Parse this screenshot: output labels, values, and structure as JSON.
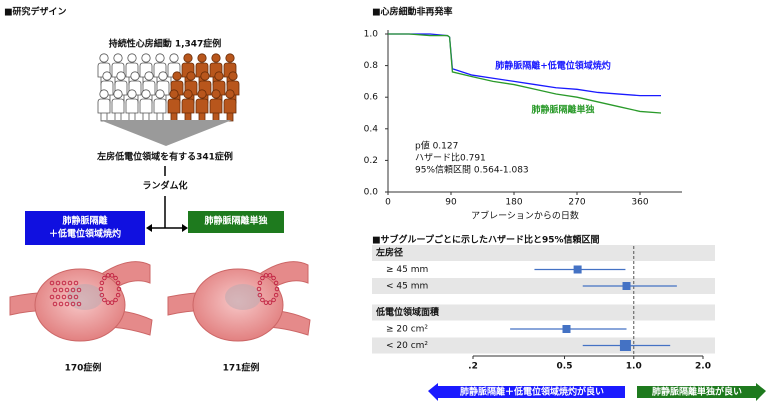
{
  "design": {
    "title": "■研究デザイン",
    "population": "持続性心房細動 1,347症例",
    "subset": "左房低電位領域を有する341症例",
    "randomization": "ランダム化",
    "arms": [
      {
        "label_lines": [
          "肺静脈隔離",
          "＋低電位領域焼灼"
        ],
        "color": "#1010e0",
        "count": "170症例"
      },
      {
        "label_lines": [
          "肺静脈隔離単独"
        ],
        "color": "#1e7a1e",
        "count": "171症例"
      }
    ]
  },
  "chart_data": [
    {
      "type": "line",
      "title": "■心房細動非再発率",
      "x_label": "アブレーションからの日数",
      "x": [
        0,
        30,
        60,
        85,
        88,
        92,
        120,
        150,
        180,
        210,
        240,
        270,
        300,
        330,
        360,
        390
      ],
      "series": [
        {
          "name": "肺静脈隔離+低電位領域焼灼",
          "color": "#1a1aff",
          "values": [
            1.0,
            1.0,
            1.0,
            0.99,
            0.98,
            0.78,
            0.74,
            0.72,
            0.7,
            0.68,
            0.66,
            0.65,
            0.63,
            0.62,
            0.61,
            0.61
          ]
        },
        {
          "name": "肺静脈隔離単独",
          "color": "#2a9a2a",
          "values": [
            1.0,
            1.0,
            0.99,
            0.99,
            0.98,
            0.76,
            0.73,
            0.7,
            0.68,
            0.65,
            0.62,
            0.6,
            0.57,
            0.54,
            0.51,
            0.5
          ]
        }
      ],
      "xlim": [
        0,
        420
      ],
      "ylim": [
        0,
        1
      ],
      "xticks": [
        0,
        90,
        180,
        270,
        360
      ],
      "yticks": [
        {
          "value": 0,
          "label": "0.0"
        },
        {
          "value": 0.2,
          "label": "0.2"
        },
        {
          "value": 0.4,
          "label": "0.4"
        },
        {
          "value": 0.6,
          "label": "0.6"
        },
        {
          "value": 0.8,
          "label": "0.8"
        },
        {
          "value": 1,
          "label": "1.0"
        }
      ],
      "annotations": [
        "p値 0.127",
        "ハザード比0.791",
        "95%信頼区間 0.564-1.083"
      ]
    },
    {
      "type": "forest",
      "title": "■サブグループごとに示したハザード比と95%信頼区間",
      "log_x": true,
      "color": "#4472c4",
      "reference": 1,
      "xlim": [
        0.2,
        2
      ],
      "xticks": [
        {
          "value": 0.2,
          "label": ".2"
        },
        {
          "value": 0.5,
          "label": "0.5"
        },
        {
          "value": 1,
          "label": "1.0"
        },
        {
          "value": 2,
          "label": "2.0"
        }
      ],
      "groups": [
        {
          "name": "左房径",
          "categories": [
            "≥ 45 mm",
            "< 45 mm"
          ],
          "values": [
            0.57,
            0.93
          ],
          "lower": [
            0.37,
            0.6
          ],
          "upper": [
            0.92,
            1.54
          ]
        },
        {
          "name": "低電位領域面積",
          "categories": [
            "≥ 20 cm²",
            "< 20 cm²"
          ],
          "values": [
            0.51,
            0.92
          ],
          "lower": [
            0.29,
            0.6
          ],
          "upper": [
            0.93,
            1.44
          ]
        }
      ],
      "favor_left": "肺静脈隔離＋低電位領域焼灼が良い",
      "favor_left_color": "#1a1aff",
      "favor_right": "肺静脈隔離単独が良い",
      "favor_right_color": "#1e7a1e"
    }
  ]
}
